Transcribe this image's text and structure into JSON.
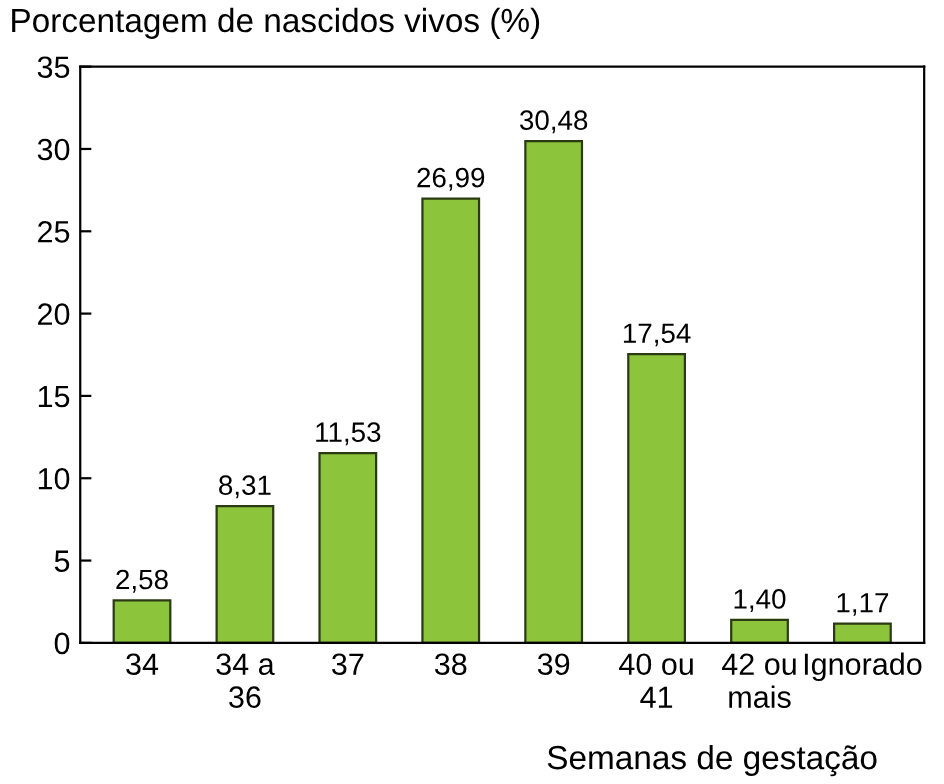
{
  "chart_data": {
    "type": "bar",
    "ylabel": "Porcentagem de nascidos vivos (%)",
    "xlabel": "Semanas de gestação",
    "categories": [
      "34",
      "34 a\n36",
      "37",
      "38",
      "39",
      "40 ou\n41",
      "42 ou\nmais",
      "Ignorado"
    ],
    "values": [
      2.58,
      8.31,
      11.53,
      26.99,
      30.48,
      17.54,
      1.4,
      1.17
    ],
    "value_labels": [
      "2,58",
      "8,31",
      "11,53",
      "26,99",
      "30,48",
      "17,54",
      "1,40",
      "1,17"
    ],
    "color": "#8cc43c",
    "ylim": [
      0,
      35
    ],
    "yticks": [
      0,
      5,
      10,
      15,
      20,
      25,
      30,
      35
    ],
    "grid": false,
    "legend": false
  }
}
